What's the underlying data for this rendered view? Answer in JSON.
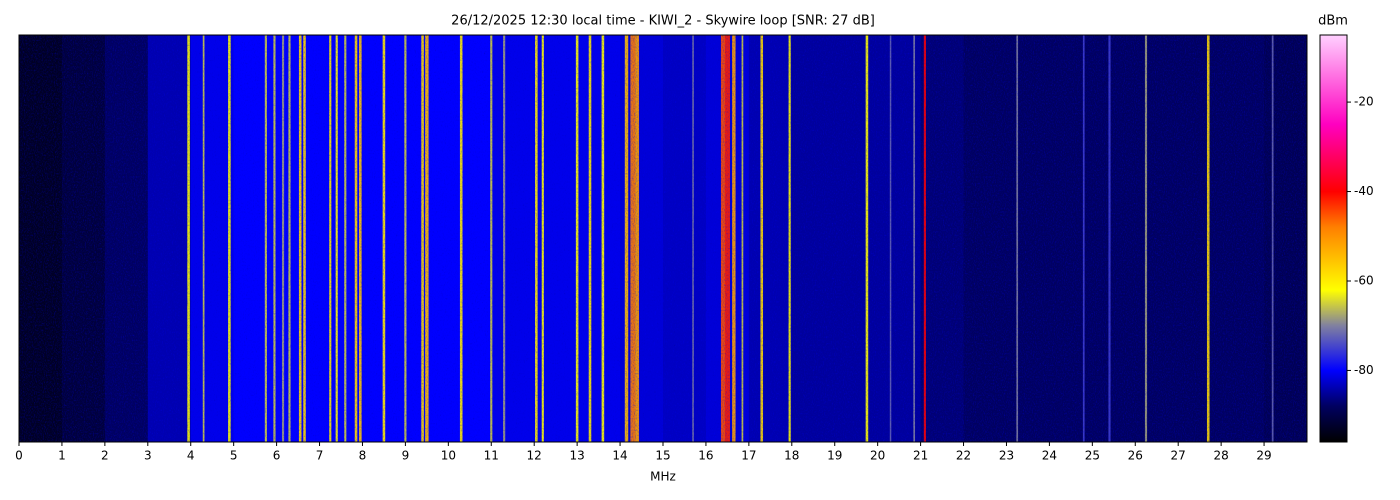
{
  "chart_data": {
    "type": "waterfall",
    "title": "26/12/2025 12:30 local time - KIWI_2 - Skywire loop [SNR: 27 dB]",
    "x_label": "MHz",
    "colorbar_label": "dBm",
    "xlim": [
      0,
      30
    ],
    "xticks": [
      0,
      1,
      2,
      3,
      4,
      5,
      6,
      7,
      8,
      9,
      10,
      11,
      12,
      13,
      14,
      15,
      16,
      17,
      18,
      19,
      20,
      21,
      22,
      23,
      24,
      25,
      26,
      27,
      28,
      29
    ],
    "clim": [
      -96,
      -5
    ],
    "cticks": [
      -20,
      -40,
      -60,
      -80
    ],
    "colormap": {
      "values": [
        -96,
        -88,
        -80,
        -70,
        -62,
        -48,
        -40,
        -25,
        -5
      ],
      "colors": [
        "#000000",
        "#000060",
        "#0000ff",
        "#8080a0",
        "#ffff00",
        "#ff8000",
        "#ff0000",
        "#ff00c0",
        "#ffd0ff"
      ]
    },
    "noise_floor": {
      "x": [
        0.5,
        1.5,
        2.5,
        3.5,
        4.5,
        5.5,
        6.5,
        7.5,
        8.5,
        9.5,
        10.5,
        11.5,
        12.5,
        13.5,
        14.5,
        15.5,
        16.5,
        17.5,
        18.5,
        19.5,
        20.5,
        21.5,
        22.5,
        23.5,
        24.5,
        25.5,
        26.5,
        27.5,
        28.5,
        29.5
      ],
      "values": [
        -93,
        -91,
        -88,
        -84,
        -81,
        -80,
        -80,
        -80,
        -80,
        -80,
        -80,
        -81,
        -81,
        -81,
        -82,
        -83,
        -82,
        -84,
        -85,
        -85,
        -85,
        -87,
        -88,
        -88,
        -88,
        -88,
        -88,
        -88,
        -88,
        -89
      ]
    },
    "signals": {
      "x": [
        3.95,
        4.3,
        4.9,
        5.75,
        5.95,
        6.15,
        6.3,
        6.55,
        6.65,
        7.25,
        7.4,
        7.6,
        7.85,
        7.95,
        8.5,
        9.0,
        9.4,
        9.5,
        10.3,
        11.0,
        11.3,
        12.05,
        12.2,
        13.0,
        13.3,
        13.6,
        14.15,
        14.3,
        14.4,
        15.7,
        16.4,
        16.5,
        16.65,
        16.85,
        17.3,
        17.95,
        19.75,
        20.3,
        20.85,
        21.1,
        23.25,
        24.8,
        25.4,
        26.25,
        27.7,
        29.2
      ],
      "values": [
        -62,
        -65,
        -62,
        -65,
        -65,
        -68,
        -65,
        -58,
        -58,
        -60,
        -62,
        -65,
        -58,
        -56,
        -60,
        -65,
        -58,
        -55,
        -60,
        -65,
        -68,
        -60,
        -62,
        -62,
        -60,
        -62,
        -55,
        -48,
        -52,
        -70,
        -45,
        -42,
        -52,
        -65,
        -58,
        -62,
        -62,
        -72,
        -70,
        -40,
        -70,
        -75,
        -75,
        -68,
        -58,
        -72
      ],
      "bandwidths": [
        0.06,
        0.04,
        0.06,
        0.05,
        0.05,
        0.05,
        0.05,
        0.06,
        0.06,
        0.05,
        0.05,
        0.05,
        0.06,
        0.06,
        0.06,
        0.05,
        0.06,
        0.08,
        0.06,
        0.05,
        0.05,
        0.06,
        0.05,
        0.06,
        0.06,
        0.06,
        0.08,
        0.12,
        0.08,
        0.03,
        0.1,
        0.12,
        0.08,
        0.04,
        0.06,
        0.05,
        0.06,
        0.03,
        0.04,
        0.05,
        0.04,
        0.04,
        0.05,
        0.05,
        0.06,
        0.04
      ]
    }
  }
}
